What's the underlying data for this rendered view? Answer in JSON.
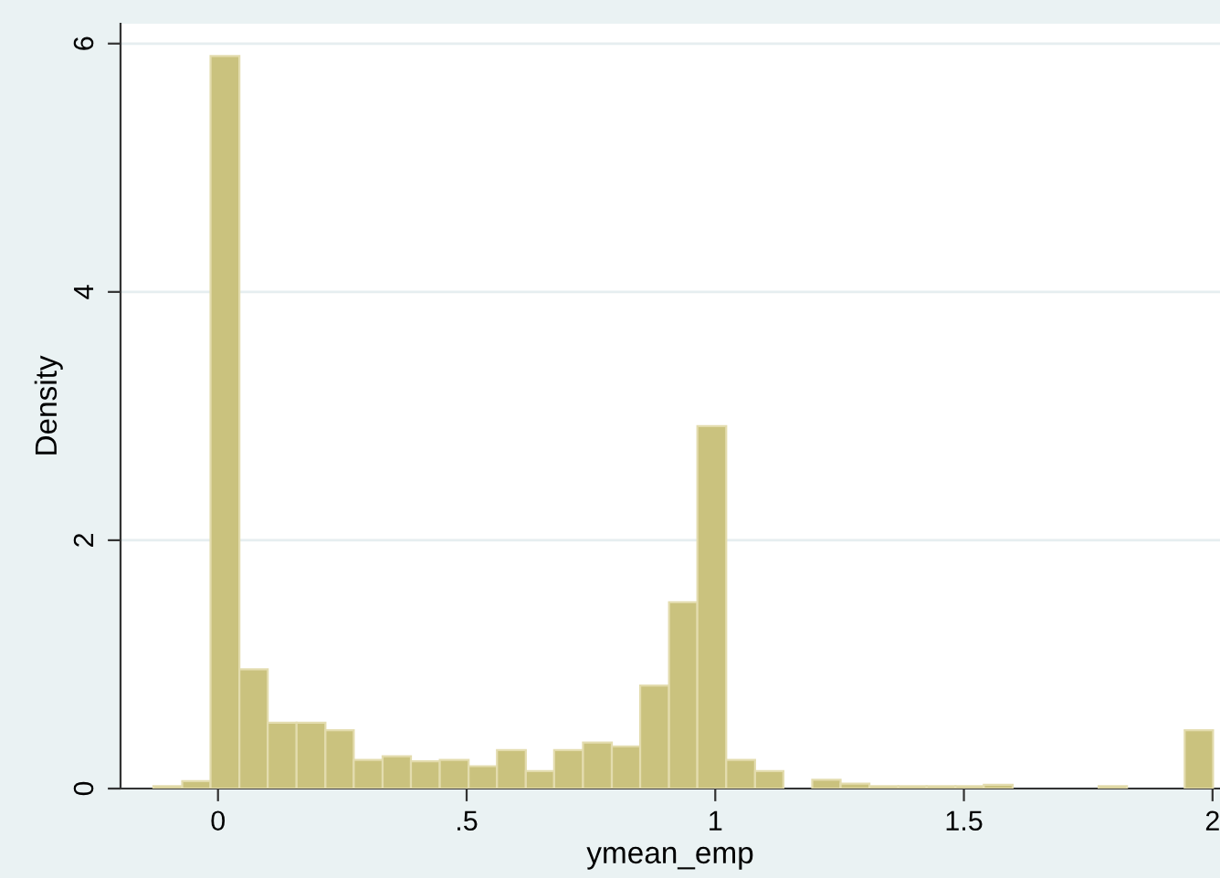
{
  "chart_data": {
    "type": "histogram",
    "xlabel": "ymean_emp",
    "ylabel": "Density",
    "bins": [
      -0.13,
      -0.072,
      -0.015,
      0.043,
      0.1,
      0.158,
      0.216,
      0.273,
      0.331,
      0.388,
      0.446,
      0.504,
      0.561,
      0.619,
      0.676,
      0.734,
      0.792,
      0.849,
      0.907,
      0.964,
      1.022,
      1.08,
      1.137,
      1.195,
      1.252,
      1.31,
      1.368,
      1.425,
      1.483,
      1.54,
      1.598,
      1.771,
      1.828,
      1.944,
      2.001
    ],
    "values": [
      0.02,
      0.06,
      5.9,
      0.96,
      0.53,
      0.53,
      0.47,
      0.23,
      0.26,
      0.22,
      0.23,
      0.18,
      0.31,
      0.14,
      0.31,
      0.37,
      0.34,
      0.83,
      1.5,
      2.92,
      0.23,
      0.14,
      0,
      0.07,
      0.04,
      0.02,
      0.02,
      0.02,
      0.02,
      0.03,
      0,
      0.02,
      0,
      0.47
    ],
    "color": "#cac27e",
    "xlim": [
      -0.196,
      2.015
    ],
    "ylim": [
      0,
      6.16
    ],
    "xticks": [
      0,
      {
        "value": 0.5,
        "label": ".5"
      },
      1,
      1.5,
      2
    ],
    "yticks": [
      0,
      2,
      4,
      6
    ],
    "grid": "y"
  }
}
